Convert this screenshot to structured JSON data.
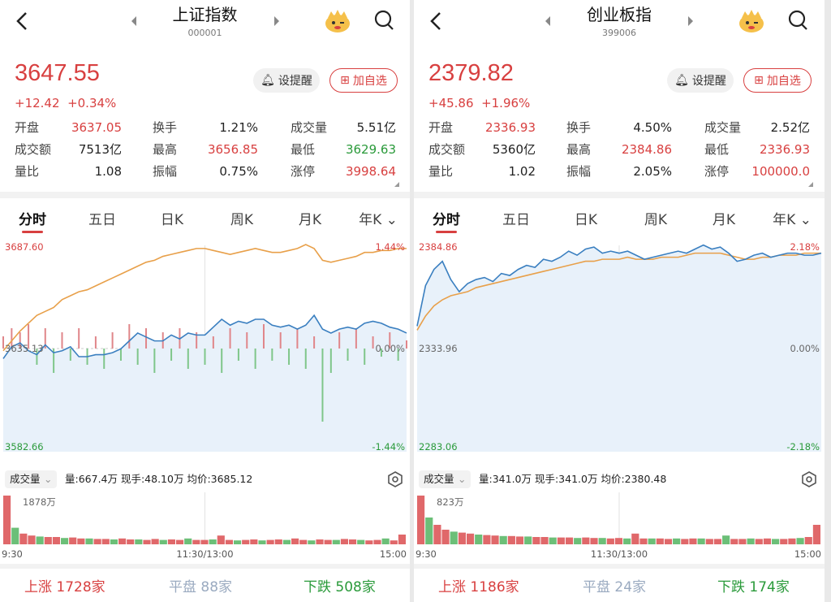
{
  "panels": [
    {
      "title": "上证指数",
      "code": "000001",
      "price": "3647.55",
      "change": "+12.42",
      "change_pct": "+0.34%",
      "remind_label": "设提醒",
      "fav_label": "加自选",
      "stats": [
        [
          {
            "label": "开盘",
            "value": "3637.05",
            "color": "red"
          },
          {
            "label": "换手",
            "value": "1.21%",
            "color": "blk"
          },
          {
            "label": "成交量",
            "value": "5.51亿",
            "color": "blk"
          }
        ],
        [
          {
            "label": "成交额",
            "value": "7513亿",
            "color": "blk"
          },
          {
            "label": "最高",
            "value": "3656.85",
            "color": "red"
          },
          {
            "label": "最低",
            "value": "3629.63",
            "color": "green"
          }
        ],
        [
          {
            "label": "量比",
            "value": "1.08",
            "color": "blk"
          },
          {
            "label": "振幅",
            "value": "0.75%",
            "color": "blk"
          },
          {
            "label": "涨停",
            "value": "3998.64",
            "color": "red"
          }
        ]
      ],
      "tabs": [
        "分时",
        "五日",
        "日K",
        "周K",
        "月K",
        "年K"
      ],
      "chart_data": {
        "type": "line",
        "y_top": "3687.60",
        "y_mid": "3635.13",
        "y_bottom": "3582.66",
        "pct_top": "1.44%",
        "pct_mid": "0.00%",
        "pct_bottom": "-1.44%",
        "series": [
          {
            "color": "#e8a04a",
            "values": [
              3634,
              3639,
              3644,
              3648,
              3652,
              3654,
              3656,
              3660,
              3662,
              3664,
              3665,
              3667,
              3669,
              3671,
              3673,
              3675,
              3677,
              3679,
              3680,
              3682,
              3683,
              3684,
              3685,
              3686,
              3686,
              3685,
              3684,
              3683,
              3684,
              3685,
              3686,
              3685,
              3684,
              3684,
              3685,
              3686,
              3688,
              3686,
              3680,
              3679,
              3680,
              3681,
              3682,
              3684,
              3684,
              3685,
              3685,
              3686,
              3686
            ]
          },
          {
            "color": "#3a7fc0",
            "values": [
              3630,
              3636,
              3638,
              3634,
              3632,
              3637,
              3633,
              3634,
              3636,
              3631,
              3631,
              3632,
              3632,
              3633,
              3635,
              3639,
              3643,
              3641,
              3639,
              3639,
              3642,
              3640,
              3643,
              3642,
              3642,
              3646,
              3650,
              3647,
              3649,
              3648,
              3650,
              3650,
              3647,
              3646,
              3647,
              3645,
              3647,
              3652,
              3645,
              3643,
              3645,
              3646,
              3645,
              3648,
              3649,
              3648,
              3646,
              3645,
              3643
            ]
          }
        ],
        "bars": [
          3,
          5,
          4,
          6,
          -4,
          5,
          -6,
          4,
          -3,
          5,
          -4,
          3,
          -5,
          4,
          -3,
          6,
          -4,
          5,
          -6,
          4,
          -3,
          5,
          -5,
          4,
          -4,
          3,
          -6,
          5,
          -3,
          4,
          -5,
          6,
          -3,
          4,
          -4,
          5,
          -5,
          3,
          -18,
          -6,
          4,
          -3,
          5,
          -4,
          3,
          -2,
          4,
          -3,
          2
        ],
        "x_labels": [
          "9:30",
          "11:30/13:00",
          "15:00"
        ]
      },
      "volume": {
        "selector": "成交量",
        "info": "量:667.4万  现手:48.10万  均价:3685.12",
        "peak": "1878万",
        "bars": [
          100,
          34,
          22,
          18,
          16,
          15,
          15,
          13,
          14,
          12,
          12,
          11,
          11,
          10,
          12,
          10,
          10,
          9,
          11,
          9,
          10,
          9,
          12,
          9,
          9,
          10,
          18,
          9,
          8,
          9,
          10,
          8,
          9,
          10,
          9,
          12,
          9,
          8,
          10,
          9,
          9,
          11,
          10,
          9,
          8,
          9,
          12,
          8,
          20
        ]
      },
      "footer": {
        "up_label": "上涨",
        "up": "1728家",
        "flat_label": "平盘",
        "flat": "88家",
        "down_label": "下跌",
        "down": "508家"
      }
    },
    {
      "title": "创业板指",
      "code": "399006",
      "price": "2379.82",
      "change": "+45.86",
      "change_pct": "+1.96%",
      "remind_label": "设提醒",
      "fav_label": "加自选",
      "stats": [
        [
          {
            "label": "开盘",
            "value": "2336.93",
            "color": "red"
          },
          {
            "label": "换手",
            "value": "4.50%",
            "color": "blk"
          },
          {
            "label": "成交量",
            "value": "2.52亿",
            "color": "blk"
          }
        ],
        [
          {
            "label": "成交额",
            "value": "5360亿",
            "color": "blk"
          },
          {
            "label": "最高",
            "value": "2384.86",
            "color": "red"
          },
          {
            "label": "最低",
            "value": "2336.93",
            "color": "red"
          }
        ],
        [
          {
            "label": "量比",
            "value": "1.02",
            "color": "blk"
          },
          {
            "label": "振幅",
            "value": "2.05%",
            "color": "blk"
          },
          {
            "label": "涨停",
            "value": "100000.0",
            "color": "red"
          }
        ]
      ],
      "tabs": [
        "分时",
        "五日",
        "日K",
        "周K",
        "月K",
        "年K"
      ],
      "chart_data": {
        "type": "line",
        "y_top": "2384.86",
        "y_mid": "2333.96",
        "y_bottom": "2283.06",
        "pct_top": "2.18%",
        "pct_mid": "0.00%",
        "pct_bottom": "-2.18%",
        "series": [
          {
            "color": "#e8a04a",
            "values": [
              2343,
              2350,
              2355,
              2358,
              2360,
              2361,
              2362,
              2364,
              2365,
              2366,
              2367,
              2368,
              2369,
              2370,
              2371,
              2372,
              2373,
              2374,
              2375,
              2376,
              2377,
              2377,
              2378,
              2378,
              2378,
              2379,
              2378,
              2378,
              2378,
              2379,
              2379,
              2379,
              2380,
              2381,
              2381,
              2381,
              2381,
              2380,
              2379,
              2378,
              2378,
              2379,
              2379,
              2380,
              2380,
              2380,
              2381,
              2381,
              2381
            ]
          },
          {
            "color": "#3a7fc0",
            "values": [
              2345,
              2365,
              2373,
              2377,
              2368,
              2362,
              2366,
              2368,
              2369,
              2367,
              2371,
              2370,
              2373,
              2375,
              2374,
              2378,
              2377,
              2379,
              2382,
              2380,
              2383,
              2384,
              2381,
              2382,
              2381,
              2382,
              2380,
              2378,
              2379,
              2380,
              2381,
              2382,
              2381,
              2383,
              2385,
              2383,
              2384,
              2381,
              2377,
              2378,
              2380,
              2381,
              2379,
              2380,
              2381,
              2381,
              2380,
              2380,
              2381
            ]
          }
        ],
        "bars": [],
        "x_labels": [
          "9:30",
          "11:30/13:00",
          "15:00"
        ]
      },
      "volume": {
        "selector": "成交量",
        "info": "量:341.0万  现手:341.0万  均价:2380.48",
        "peak": "823万",
        "bars": [
          100,
          55,
          40,
          30,
          26,
          24,
          22,
          20,
          19,
          18,
          17,
          17,
          16,
          16,
          15,
          15,
          14,
          14,
          14,
          13,
          14,
          13,
          13,
          12,
          13,
          12,
          22,
          12,
          12,
          12,
          11,
          12,
          11,
          12,
          12,
          11,
          11,
          18,
          11,
          11,
          12,
          11,
          12,
          11,
          11,
          12,
          13,
          15,
          40
        ]
      },
      "footer": {
        "up_label": "上涨",
        "up": "1186家",
        "flat_label": "平盘",
        "flat": "24家",
        "down_label": "下跌",
        "down": "174家"
      }
    }
  ]
}
